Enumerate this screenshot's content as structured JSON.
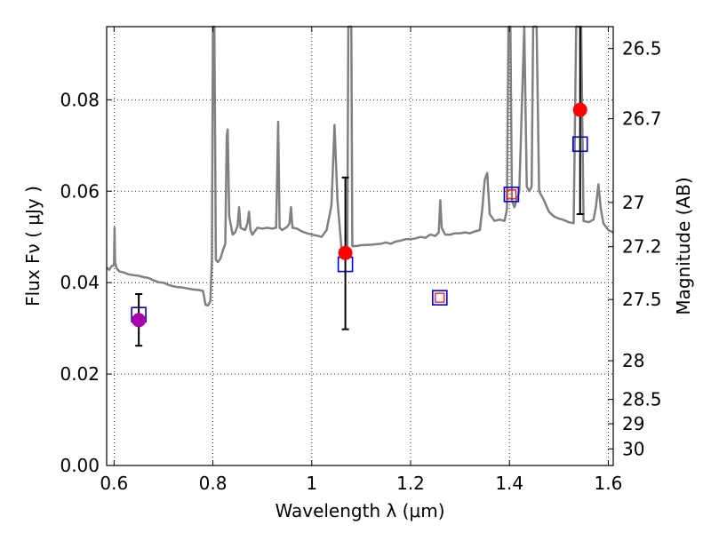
{
  "chart_data": {
    "type": "scatter",
    "xlabel": "Wavelength  λ (μm)",
    "ylabel": "Flux  Fν  ( μJy )",
    "y2label": "Magnitude (AB)",
    "xlim": [
      0.585,
      1.61
    ],
    "ylim": [
      0.0,
      0.096
    ],
    "grid": true,
    "x_ticks": [
      0.6,
      0.8,
      1.0,
      1.2,
      1.4,
      1.6
    ],
    "x_tick_labels": [
      "0.6",
      "0.8",
      "1",
      "1.2",
      "1.4",
      "1.6"
    ],
    "y_ticks": [
      0.0,
      0.02,
      0.04,
      0.06,
      0.08
    ],
    "y_tick_labels": [
      "0.00",
      "0.02",
      "0.04",
      "0.06",
      "0.08"
    ],
    "y2_ticks": [
      {
        "label": "26.5",
        "mag": 26.5
      },
      {
        "label": "26.7",
        "mag": 26.7
      },
      {
        "label": "27",
        "mag": 27.0
      },
      {
        "label": "27.2",
        "mag": 27.2
      },
      {
        "label": "27.5",
        "mag": 27.5
      },
      {
        "label": "28",
        "mag": 28.0
      },
      {
        "label": "28.5",
        "mag": 28.5
      },
      {
        "label": "29",
        "mag": 29.0
      },
      {
        "label": "30",
        "mag": 30.0
      }
    ],
    "model_spectrum": {
      "color": "#808080",
      "points": [
        [
          0.585,
          0.0433
        ],
        [
          0.59,
          0.0428
        ],
        [
          0.595,
          0.0436
        ],
        [
          0.598,
          0.0437
        ],
        [
          0.6,
          0.044
        ],
        [
          0.601,
          0.052
        ],
        [
          0.602,
          0.0445
        ],
        [
          0.605,
          0.0432
        ],
        [
          0.61,
          0.0425
        ],
        [
          0.62,
          0.0422
        ],
        [
          0.63,
          0.0418
        ],
        [
          0.64,
          0.0416
        ],
        [
          0.65,
          0.0415
        ],
        [
          0.66,
          0.0412
        ],
        [
          0.67,
          0.041
        ],
        [
          0.68,
          0.0405
        ],
        [
          0.69,
          0.0401
        ],
        [
          0.7,
          0.04
        ],
        [
          0.71,
          0.0395
        ],
        [
          0.72,
          0.0392
        ],
        [
          0.73,
          0.039
        ],
        [
          0.74,
          0.0389
        ],
        [
          0.75,
          0.0387
        ],
        [
          0.76,
          0.0385
        ],
        [
          0.77,
          0.0384
        ],
        [
          0.78,
          0.0382
        ],
        [
          0.785,
          0.0352
        ],
        [
          0.79,
          0.035
        ],
        [
          0.795,
          0.036
        ],
        [
          0.798,
          0.045
        ],
        [
          0.8,
          0.096
        ],
        [
          0.803,
          0.096
        ],
        [
          0.806,
          0.045
        ],
        [
          0.81,
          0.0445
        ],
        [
          0.815,
          0.0452
        ],
        [
          0.82,
          0.047
        ],
        [
          0.825,
          0.0485
        ],
        [
          0.828,
          0.072
        ],
        [
          0.83,
          0.0735
        ],
        [
          0.833,
          0.0545
        ],
        [
          0.84,
          0.0505
        ],
        [
          0.845,
          0.051
        ],
        [
          0.85,
          0.0525
        ],
        [
          0.853,
          0.0565
        ],
        [
          0.856,
          0.052
        ],
        [
          0.865,
          0.0515
        ],
        [
          0.87,
          0.053
        ],
        [
          0.873,
          0.0555
        ],
        [
          0.876,
          0.0515
        ],
        [
          0.88,
          0.0505
        ],
        [
          0.89,
          0.052
        ],
        [
          0.9,
          0.0518
        ],
        [
          0.91,
          0.052
        ],
        [
          0.92,
          0.0518
        ],
        [
          0.928,
          0.052
        ],
        [
          0.932,
          0.0752
        ],
        [
          0.935,
          0.052
        ],
        [
          0.94,
          0.0515
        ],
        [
          0.95,
          0.0522
        ],
        [
          0.955,
          0.053
        ],
        [
          0.958,
          0.0565
        ],
        [
          0.961,
          0.052
        ],
        [
          0.97,
          0.0518
        ],
        [
          0.98,
          0.0512
        ],
        [
          0.99,
          0.0508
        ],
        [
          1.0,
          0.0505
        ],
        [
          1.01,
          0.0503
        ],
        [
          1.02,
          0.05
        ],
        [
          1.03,
          0.0515
        ],
        [
          1.04,
          0.057
        ],
        [
          1.046,
          0.0745
        ],
        [
          1.052,
          0.058
        ],
        [
          1.06,
          0.0478
        ],
        [
          1.065,
          0.046
        ],
        [
          1.07,
          0.047
        ],
        [
          1.072,
          0.048
        ],
        [
          1.074,
          0.096
        ],
        [
          1.08,
          0.096
        ],
        [
          1.082,
          0.048
        ],
        [
          1.09,
          0.048
        ],
        [
          1.1,
          0.0482
        ],
        [
          1.12,
          0.0483
        ],
        [
          1.14,
          0.0485
        ],
        [
          1.15,
          0.0488
        ],
        [
          1.16,
          0.0485
        ],
        [
          1.17,
          0.049
        ],
        [
          1.18,
          0.0492
        ],
        [
          1.19,
          0.0495
        ],
        [
          1.2,
          0.0495
        ],
        [
          1.21,
          0.0497
        ],
        [
          1.22,
          0.05
        ],
        [
          1.23,
          0.0498
        ],
        [
          1.24,
          0.0505
        ],
        [
          1.25,
          0.0502
        ],
        [
          1.257,
          0.051
        ],
        [
          1.26,
          0.058
        ],
        [
          1.263,
          0.052
        ],
        [
          1.27,
          0.0505
        ],
        [
          1.28,
          0.0505
        ],
        [
          1.29,
          0.0508
        ],
        [
          1.3,
          0.0508
        ],
        [
          1.31,
          0.051
        ],
        [
          1.32,
          0.0508
        ],
        [
          1.33,
          0.0512
        ],
        [
          1.34,
          0.0515
        ],
        [
          1.345,
          0.056
        ],
        [
          1.35,
          0.0625
        ],
        [
          1.355,
          0.064
        ],
        [
          1.36,
          0.055
        ],
        [
          1.37,
          0.0535
        ],
        [
          1.38,
          0.0538
        ],
        [
          1.39,
          0.0535
        ],
        [
          1.395,
          0.056
        ],
        [
          1.398,
          0.096
        ],
        [
          1.402,
          0.096
        ],
        [
          1.405,
          0.058
        ],
        [
          1.41,
          0.0565
        ],
        [
          1.42,
          0.06
        ],
        [
          1.43,
          0.096
        ],
        [
          1.435,
          0.061
        ],
        [
          1.44,
          0.06
        ],
        [
          1.445,
          0.061
        ],
        [
          1.448,
          0.096
        ],
        [
          1.455,
          0.096
        ],
        [
          1.46,
          0.06
        ],
        [
          1.47,
          0.058
        ],
        [
          1.48,
          0.0555
        ],
        [
          1.49,
          0.0545
        ],
        [
          1.5,
          0.054
        ],
        [
          1.51,
          0.0537
        ],
        [
          1.52,
          0.0532
        ],
        [
          1.53,
          0.053
        ],
        [
          1.535,
          0.096
        ],
        [
          1.545,
          0.096
        ],
        [
          1.55,
          0.0535
        ],
        [
          1.56,
          0.0532
        ],
        [
          1.57,
          0.0538
        ],
        [
          1.575,
          0.0565
        ],
        [
          1.58,
          0.0615
        ],
        [
          1.585,
          0.056
        ],
        [
          1.59,
          0.053
        ],
        [
          1.6,
          0.0515
        ],
        [
          1.61,
          0.051
        ]
      ]
    },
    "model_photometry": {
      "marker": "open-square",
      "color": "#0000cc",
      "points": [
        {
          "x": 0.65,
          "y": 0.033
        },
        {
          "x": 1.068,
          "y": 0.044
        },
        {
          "x": 1.259,
          "y": 0.0367
        },
        {
          "x": 1.404,
          "y": 0.0593
        },
        {
          "x": 1.543,
          "y": 0.0703
        }
      ]
    },
    "observed_flux": {
      "marker": "filled-circle",
      "points": [
        {
          "x": 0.65,
          "y": 0.0318,
          "err_low": 0.0262,
          "err_high": 0.0375,
          "color": "#aa00aa"
        },
        {
          "x": 1.068,
          "y": 0.0465,
          "err_low": 0.0298,
          "err_high": 0.063,
          "color": "#ff0000"
        },
        {
          "x": 1.543,
          "y": 0.0778,
          "err_low": 0.055,
          "err_high": 0.096,
          "color": "#ff0000"
        }
      ]
    },
    "upper_limit_markers": {
      "marker": "small-open-square",
      "color": "#ff0000",
      "points": [
        {
          "x": 1.259,
          "y": 0.0367
        },
        {
          "x": 1.404,
          "y": 0.0593
        }
      ]
    }
  }
}
